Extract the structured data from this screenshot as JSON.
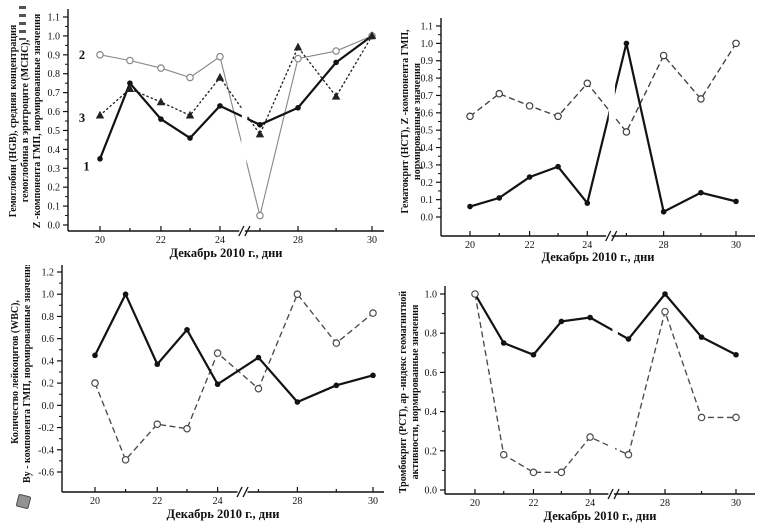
{
  "figure": {
    "background": "#ffffff",
    "x_axis_label": "Декабрь 2010 г., дни",
    "axis_color": "#111111"
  },
  "chart_data": [
    {
      "id": "hgb_mchc_z",
      "type": "line",
      "panel": "top-left",
      "ylabel_lines": [
        "Гемоглобин (HGB), средняя концентрация",
        "гемоглобина в эритроците (MCHC),",
        "Z -компонента ГМП, нормированные значения"
      ],
      "xlabel": "Декабрь 2010 г., дни",
      "x_days": [
        20,
        21,
        22,
        23,
        24,
        27,
        28,
        29,
        30
      ],
      "x_labeled_days": [
        20,
        22,
        24,
        28,
        30
      ],
      "x_axis_break_between": [
        24,
        27
      ],
      "ylim": [
        0.0,
        1.1
      ],
      "ytick_step": 0.1,
      "grid": false,
      "legend": "numbered curve labels inside plot",
      "series": [
        {
          "name": "Гемоглобин (HGB)",
          "curve_label": "1",
          "marker": "filled-circle",
          "line_style": "solid",
          "line_width": "thick",
          "color": "#121212",
          "values": [
            0.35,
            0.75,
            0.56,
            0.46,
            0.63,
            0.53,
            0.62,
            0.86,
            1.0
          ],
          "label_pos": {
            "day": 19.55,
            "value": 0.31
          }
        },
        {
          "name": "MCHC",
          "curve_label": "2",
          "marker": "open-circle",
          "line_style": "solid",
          "line_width": "thin",
          "color": "#878787",
          "values": [
            0.9,
            0.87,
            0.83,
            0.78,
            0.89,
            0.05,
            0.88,
            0.92,
            1.0
          ],
          "label_pos": {
            "day": 19.4,
            "value": 0.9
          }
        },
        {
          "name": "Z-компонента ГМП",
          "curve_label": "3",
          "marker": "filled-triangle",
          "line_style": "dotted",
          "line_width": "thin",
          "color": "#222222",
          "values": [
            0.58,
            0.72,
            0.65,
            0.58,
            0.78,
            0.48,
            0.94,
            0.68,
            1.0
          ],
          "label_pos": {
            "day": 19.4,
            "value": 0.565
          }
        }
      ]
    },
    {
      "id": "hct_z",
      "type": "line",
      "panel": "top-right",
      "ylabel_lines": [
        "Гематокрит (HCT), Z -компонента ГМП,",
        "нормированные значения"
      ],
      "xlabel": "Декабрь 2010 г., дни",
      "x_days": [
        20,
        21,
        22,
        23,
        24,
        27,
        28,
        29,
        30
      ],
      "x_labeled_days": [
        20,
        22,
        24,
        28,
        30
      ],
      "x_axis_break_between": [
        24,
        27
      ],
      "ylim": [
        0.0,
        1.1
      ],
      "ytick_step": 0.1,
      "grid": false,
      "series": [
        {
          "name": "Гематокрит (HCT)",
          "curve_label": "",
          "marker": "filled-circle",
          "line_style": "solid",
          "line_width": "thick",
          "color": "#121212",
          "values": [
            0.06,
            0.11,
            0.23,
            0.29,
            0.08,
            1.0,
            0.03,
            0.14,
            0.09
          ]
        },
        {
          "name": "Z-компонента ГМП",
          "curve_label": "",
          "marker": "open-circle",
          "line_style": "dashed",
          "line_width": "thin",
          "color": "#3f3f3f",
          "values": [
            0.58,
            0.71,
            0.64,
            0.58,
            0.77,
            0.49,
            0.93,
            0.68,
            1.0
          ]
        }
      ]
    },
    {
      "id": "wbc_by",
      "type": "line",
      "panel": "bottom-left",
      "ylabel_lines": [
        "Количество лейкоцитов  (WBC),",
        "By - компонента ГМП, нормированные значения"
      ],
      "xlabel": "Декабрь 2010 г., дни",
      "x_days": [
        20,
        21,
        22,
        23,
        24,
        27,
        28,
        29,
        30
      ],
      "x_labeled_days": [
        20,
        22,
        24,
        28,
        30
      ],
      "x_axis_break_between": [
        24,
        27
      ],
      "ylim": [
        -0.6,
        1.2
      ],
      "ytick_step": 0.2,
      "grid": false,
      "series": [
        {
          "name": "Количество лейкоцитов (WBC)",
          "curve_label": "",
          "marker": "filled-circle",
          "line_style": "solid",
          "line_width": "thick",
          "color": "#121212",
          "values": [
            0.45,
            1.0,
            0.37,
            0.68,
            0.19,
            0.43,
            0.03,
            0.18,
            0.27
          ]
        },
        {
          "name": "By-компонента ГМП",
          "curve_label": "",
          "marker": "open-circle",
          "line_style": "dashed",
          "line_width": "thin",
          "color": "#4a4a4a",
          "values": [
            0.2,
            -0.49,
            -0.17,
            -0.21,
            0.47,
            0.15,
            1.0,
            0.56,
            0.83
          ]
        }
      ]
    },
    {
      "id": "pct_ap",
      "type": "line",
      "panel": "bottom-right",
      "ylabel_lines": [
        "Тромбокрит (PCT), ap -индекс геомагнитной",
        "активности, нормированные значения"
      ],
      "xlabel": "Декабрь 2010 г., дни",
      "x_days": [
        20,
        21,
        22,
        23,
        24,
        27,
        28,
        29,
        30
      ],
      "x_labeled_days": [
        20,
        22,
        24,
        28,
        30
      ],
      "x_axis_break_between": [
        24,
        27
      ],
      "ylim": [
        0.0,
        1.0
      ],
      "ytick_step": 0.2,
      "grid": false,
      "series": [
        {
          "name": "Тромбокрит (PCT)",
          "curve_label": "",
          "marker": "filled-circle",
          "line_style": "solid",
          "line_width": "thick",
          "color": "#121212",
          "values": [
            1.0,
            0.75,
            0.69,
            0.86,
            0.88,
            0.77,
            1.0,
            0.78,
            0.69
          ]
        },
        {
          "name": "ap-индекс геомагнитной активности",
          "curve_label": "",
          "marker": "open-circle",
          "line_style": "dashed",
          "line_width": "thin",
          "color": "#4a4a4a",
          "values": [
            1.0,
            0.18,
            0.09,
            0.09,
            0.27,
            0.18,
            0.91,
            0.37,
            0.37
          ]
        }
      ]
    }
  ]
}
